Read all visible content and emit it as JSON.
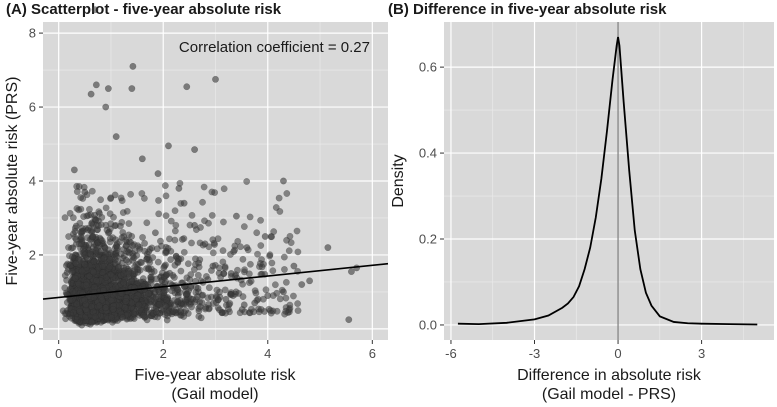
{
  "chart_data": [
    {
      "type": "scatter",
      "panel_title": "(A) Scatterplot - five-year absolute risk",
      "xlabel": [
        "Five-year absolute risk",
        "(Gail model)"
      ],
      "ylabel": "Five-year absolute risk (PRS)",
      "xlim": [
        -0.3,
        6.3
      ],
      "ylim": [
        -0.3,
        8.3
      ],
      "xticks": [
        0,
        2,
        4,
        6
      ],
      "yticks": [
        0,
        2,
        4,
        6,
        8
      ],
      "annotation": "Correlation coefficient = 0.27",
      "grid": true,
      "background": "#d9d9d9",
      "point_color": "#3a3a3a",
      "regression_line": {
        "intercept": 0.85,
        "slope": 0.145
      },
      "notable_points": [
        {
          "x": 0.72,
          "y": 6.6
        },
        {
          "x": 0.95,
          "y": 6.5
        },
        {
          "x": 1.42,
          "y": 7.1
        },
        {
          "x": 3.0,
          "y": 6.75
        },
        {
          "x": 2.45,
          "y": 6.55
        },
        {
          "x": 1.4,
          "y": 6.5
        },
        {
          "x": 0.62,
          "y": 6.35
        },
        {
          "x": 0.9,
          "y": 6.0
        },
        {
          "x": 1.1,
          "y": 5.2
        },
        {
          "x": 2.1,
          "y": 4.95
        },
        {
          "x": 2.6,
          "y": 4.85
        },
        {
          "x": 4.3,
          "y": 4.0
        },
        {
          "x": 3.4,
          "y": 3.05
        },
        {
          "x": 3.95,
          "y": 2.5
        },
        {
          "x": 5.15,
          "y": 2.2
        },
        {
          "x": 5.6,
          "y": 1.55
        },
        {
          "x": 5.7,
          "y": 1.65
        },
        {
          "x": 5.55,
          "y": 0.25
        },
        {
          "x": 4.8,
          "y": 1.3
        },
        {
          "x": 4.3,
          "y": 1.0
        },
        {
          "x": 4.0,
          "y": 0.9
        },
        {
          "x": 3.75,
          "y": 0.7
        },
        {
          "x": 3.55,
          "y": 0.65
        },
        {
          "x": 3.2,
          "y": 0.8
        },
        {
          "x": 2.95,
          "y": 1.7
        },
        {
          "x": 2.8,
          "y": 2.3
        },
        {
          "x": 2.6,
          "y": 2.8
        },
        {
          "x": 2.4,
          "y": 3.4
        },
        {
          "x": 2.3,
          "y": 3.8
        },
        {
          "x": 1.9,
          "y": 4.2
        },
        {
          "x": 1.6,
          "y": 4.6
        },
        {
          "x": 0.3,
          "y": 4.3
        },
        {
          "x": 0.5,
          "y": 3.7
        },
        {
          "x": 1.85,
          "y": 2.6
        },
        {
          "x": 2.05,
          "y": 2.1
        },
        {
          "x": 3.6,
          "y": 2.2
        },
        {
          "x": 3.3,
          "y": 1.5
        },
        {
          "x": 4.5,
          "y": 1.7
        },
        {
          "x": 4.65,
          "y": 1.2
        }
      ]
    },
    {
      "type": "line",
      "panel_title": "(B) Difference in five-year absolute risk",
      "xlabel": [
        "Difference in absolute risk",
        "(Gail model - PRS)"
      ],
      "ylabel": "Density",
      "xlim": [
        -6.25,
        5.6
      ],
      "ylim": [
        -0.035,
        0.705
      ],
      "xticks": [
        -6,
        -3,
        0,
        3
      ],
      "xtick_labels": [
        "-6",
        "-3",
        "0",
        "3"
      ],
      "yticks": [
        0.0,
        0.2,
        0.4,
        0.6
      ],
      "ytick_labels": [
        "0.0",
        "0.2",
        "0.4",
        "0.6"
      ],
      "vline": 0,
      "grid": true,
      "background": "#d9d9d9",
      "x": [
        -5.75,
        -5.0,
        -4.0,
        -3.0,
        -2.5,
        -2.0,
        -1.8,
        -1.6,
        -1.4,
        -1.2,
        -1.0,
        -0.8,
        -0.6,
        -0.4,
        -0.2,
        -0.05,
        0.0,
        0.05,
        0.2,
        0.4,
        0.6,
        0.8,
        1.0,
        1.2,
        1.5,
        2.0,
        2.5,
        3.0,
        4.0,
        5.0
      ],
      "y": [
        0.003,
        0.002,
        0.005,
        0.013,
        0.022,
        0.04,
        0.05,
        0.065,
        0.09,
        0.13,
        0.18,
        0.25,
        0.34,
        0.45,
        0.57,
        0.65,
        0.67,
        0.65,
        0.52,
        0.36,
        0.22,
        0.13,
        0.075,
        0.045,
        0.02,
        0.007,
        0.004,
        0.003,
        0.002,
        0.001
      ]
    }
  ]
}
